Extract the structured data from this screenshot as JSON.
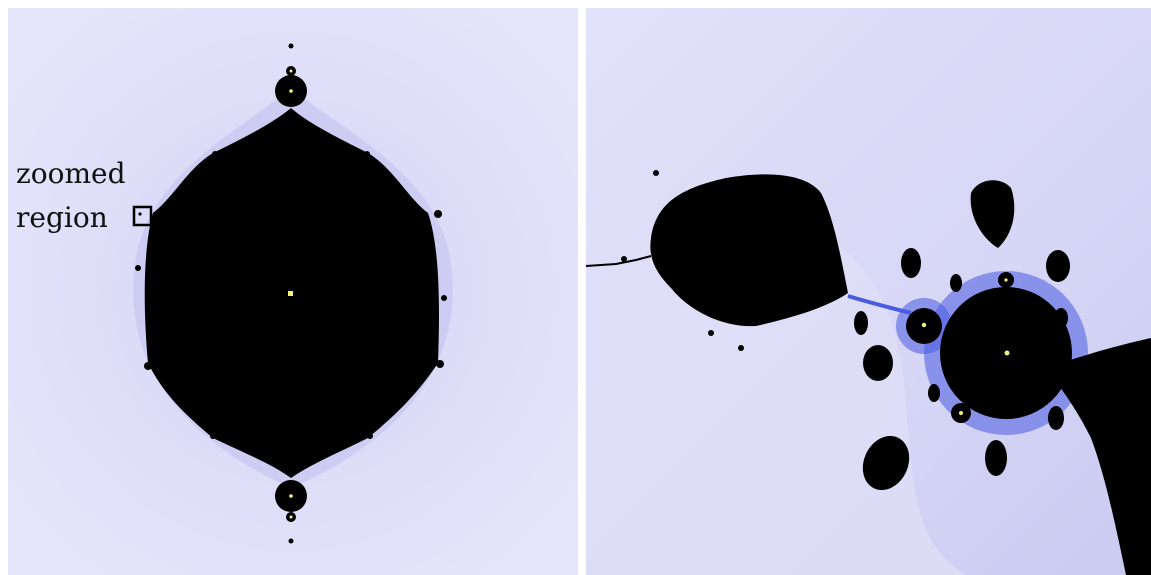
{
  "figure": {
    "annotation": {
      "line1": "zoomed",
      "line2": "region"
    }
  },
  "colors": {
    "background_outer": "#e6e6fb",
    "background_mid": "#d9d9f7",
    "background_near": "#c9c9f2",
    "set_fill": "#000000",
    "filament_blue": "#4a5be0",
    "marker_yellow": "#f2f27a",
    "box_stroke": "#000000"
  }
}
